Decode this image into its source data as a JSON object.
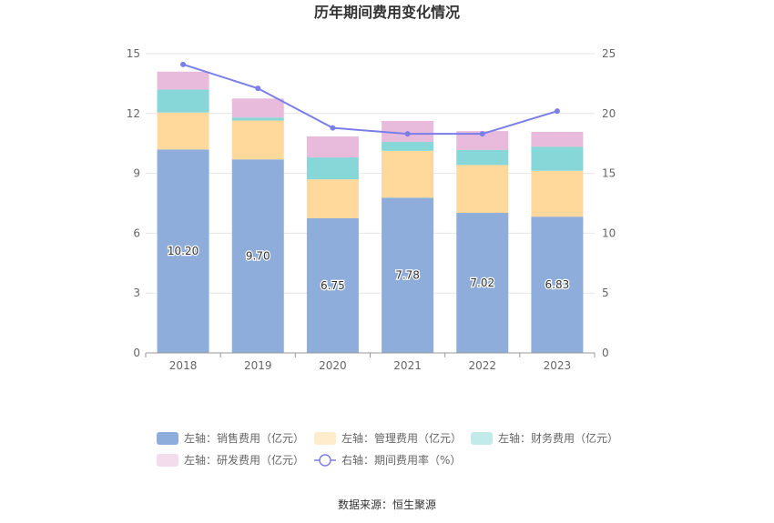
{
  "chart_data": {
    "type": "bar",
    "title": "历年期间费用变化情况",
    "categories": [
      "2018",
      "2019",
      "2020",
      "2021",
      "2022",
      "2023"
    ],
    "stacked": true,
    "left_axis": {
      "ylim": [
        0,
        15
      ],
      "ticks": [
        0,
        3,
        6,
        9,
        12,
        15
      ]
    },
    "right_axis": {
      "ylim": [
        0,
        25
      ],
      "ticks": [
        0,
        5,
        10,
        15,
        20,
        25
      ]
    },
    "series": [
      {
        "name": "左轴：销售费用（亿元）",
        "axis": "left",
        "type": "bar",
        "color": "#8fadda",
        "values": [
          10.2,
          9.7,
          6.75,
          7.78,
          7.02,
          6.83
        ],
        "show_labels": true
      },
      {
        "name": "左轴：管理费用（亿元）",
        "axis": "left",
        "type": "bar",
        "color": "#fed99b",
        "values": [
          1.85,
          1.95,
          1.95,
          2.35,
          2.4,
          2.3
        ],
        "show_labels": false
      },
      {
        "name": "左轴：财务费用（亿元）",
        "axis": "left",
        "type": "bar",
        "color": "#87d6d8",
        "values": [
          1.15,
          0.15,
          1.1,
          0.45,
          0.75,
          1.2
        ],
        "show_labels": false
      },
      {
        "name": "左轴：研发费用（亿元）",
        "axis": "left",
        "type": "bar",
        "color": "#e8bbdc",
        "values": [
          0.9,
          0.95,
          1.05,
          1.05,
          0.95,
          0.75
        ],
        "show_labels": false
      },
      {
        "name": "右轴：期间费用率（%）",
        "axis": "right",
        "type": "line",
        "color": "#7a7ee8",
        "values": [
          24.1,
          22.1,
          18.8,
          18.3,
          18.3,
          20.2
        ]
      }
    ],
    "legend_position": "bottom",
    "grid": true,
    "source": "数据来源：恒生聚源"
  }
}
